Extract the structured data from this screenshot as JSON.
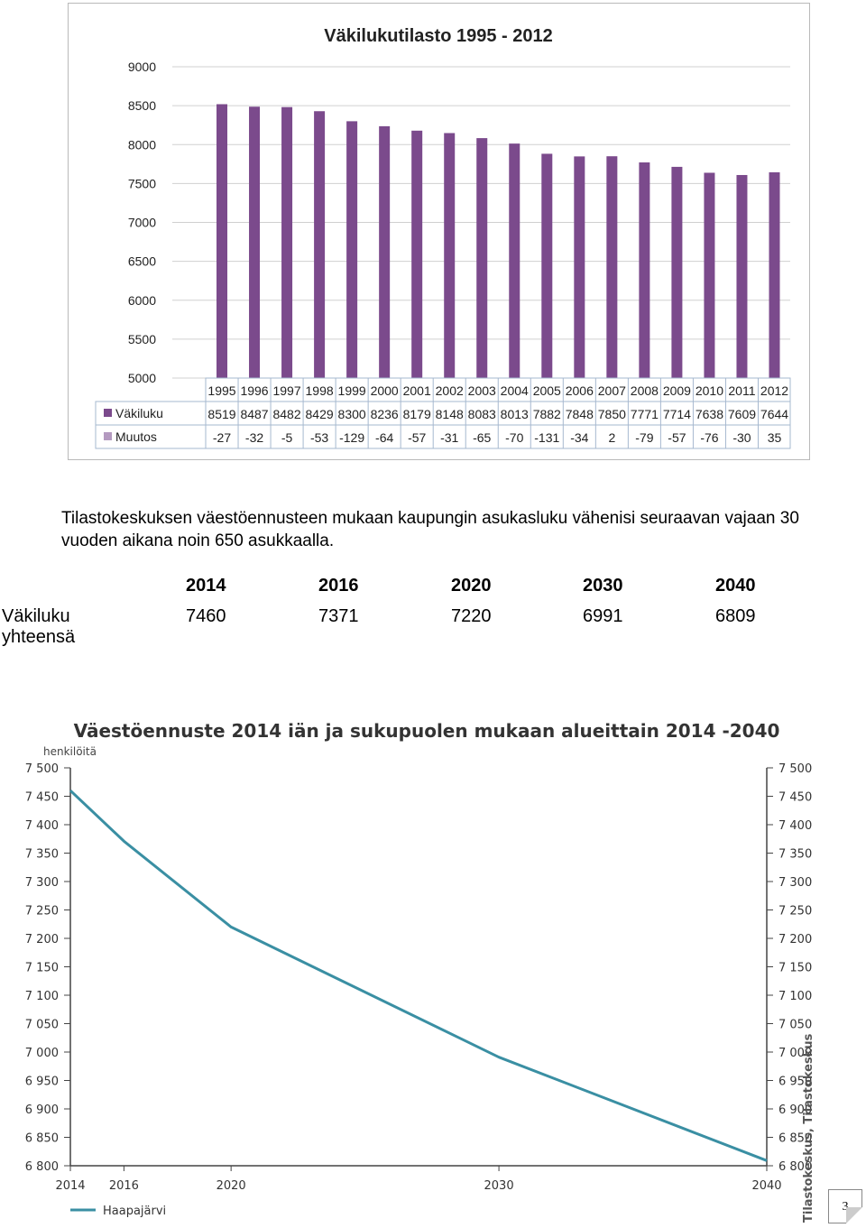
{
  "chart_data": [
    {
      "type": "bar",
      "title": "Väkilukutilasto 1995 - 2012",
      "categories": [
        "1995",
        "1996",
        "1997",
        "1998",
        "1999",
        "2000",
        "2001",
        "2002",
        "2003",
        "2004",
        "2005",
        "2006",
        "2007",
        "2008",
        "2009",
        "2010",
        "2011",
        "2012"
      ],
      "series": [
        {
          "name": "Väkiluku",
          "values": [
            8519,
            8487,
            8482,
            8429,
            8300,
            8236,
            8179,
            8148,
            8083,
            8013,
            7882,
            7848,
            7850,
            7771,
            7714,
            7638,
            7609,
            7644
          ],
          "color": "#7b4a8c"
        },
        {
          "name": "Muutos",
          "values": [
            -27,
            -32,
            -5,
            -53,
            -129,
            -64,
            -57,
            -31,
            -65,
            -70,
            -131,
            -34,
            2,
            -79,
            -57,
            -76,
            -30,
            35
          ],
          "color": "#b49ac0"
        }
      ],
      "yticks": [
        "5000",
        "5500",
        "6000",
        "6500",
        "7000",
        "7500",
        "8000",
        "8500",
        "9000"
      ],
      "ylim": [
        5000,
        9000
      ],
      "grid": true,
      "legend": "data-table"
    },
    {
      "type": "line",
      "title": "Väestöennuste 2014 iän ja sukupuolen mukaan alueittain 2014 -2040",
      "ylabel": "henkilöitä",
      "x": [
        "2014",
        "2016",
        "2020",
        "2030",
        "2040"
      ],
      "series": [
        {
          "name": "Haapajärvi",
          "values": [
            7460,
            7371,
            7220,
            6991,
            6809
          ],
          "color": "#3a8fa3"
        }
      ],
      "yticks": [
        "6 800",
        "6 850",
        "6 900",
        "6 950",
        "7 000",
        "7 050",
        "7 100",
        "7 150",
        "7 200",
        "7 250",
        "7 300",
        "7 350",
        "7 400",
        "7 450",
        "7 500"
      ],
      "ylim": [
        6800,
        7500
      ],
      "grid": false,
      "legend": "bottom-left",
      "source": "Tilastokeskus, Tilastokeskus"
    }
  ],
  "paragraph": "Tilastokeskuksen väestöennusteen mukaan kaupungin asukasluku vähenisi seuraavan vajaan 30 vuoden aikana noin 650 asukkaalla.",
  "forecast_table": {
    "years": [
      "2014",
      "2016",
      "2020",
      "2030",
      "2040"
    ],
    "row_label": "Väkiluku yhteensä",
    "values": [
      "7460",
      "7371",
      "7220",
      "6991",
      "6809"
    ]
  },
  "page_number": "3"
}
